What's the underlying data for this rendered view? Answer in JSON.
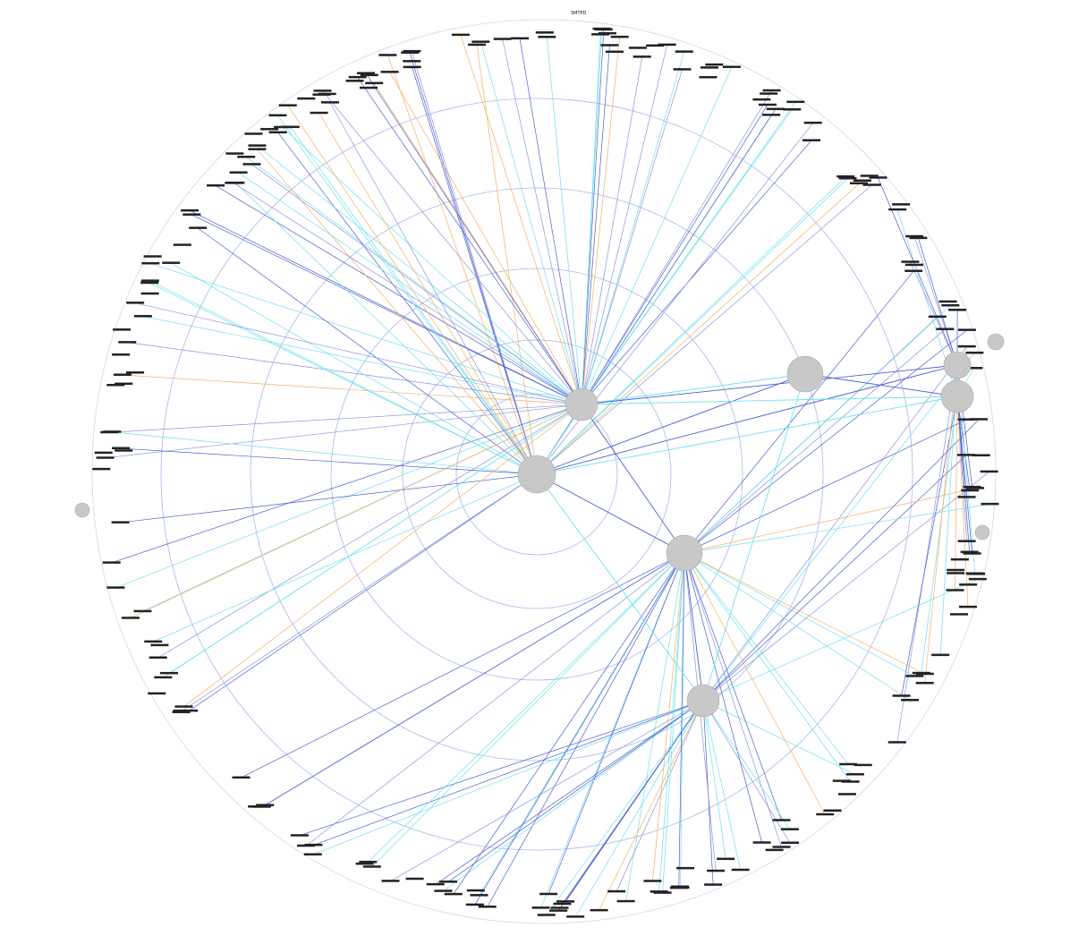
{
  "nodes": [
    {
      "label": "SMTPD"
    }
  ]
}
